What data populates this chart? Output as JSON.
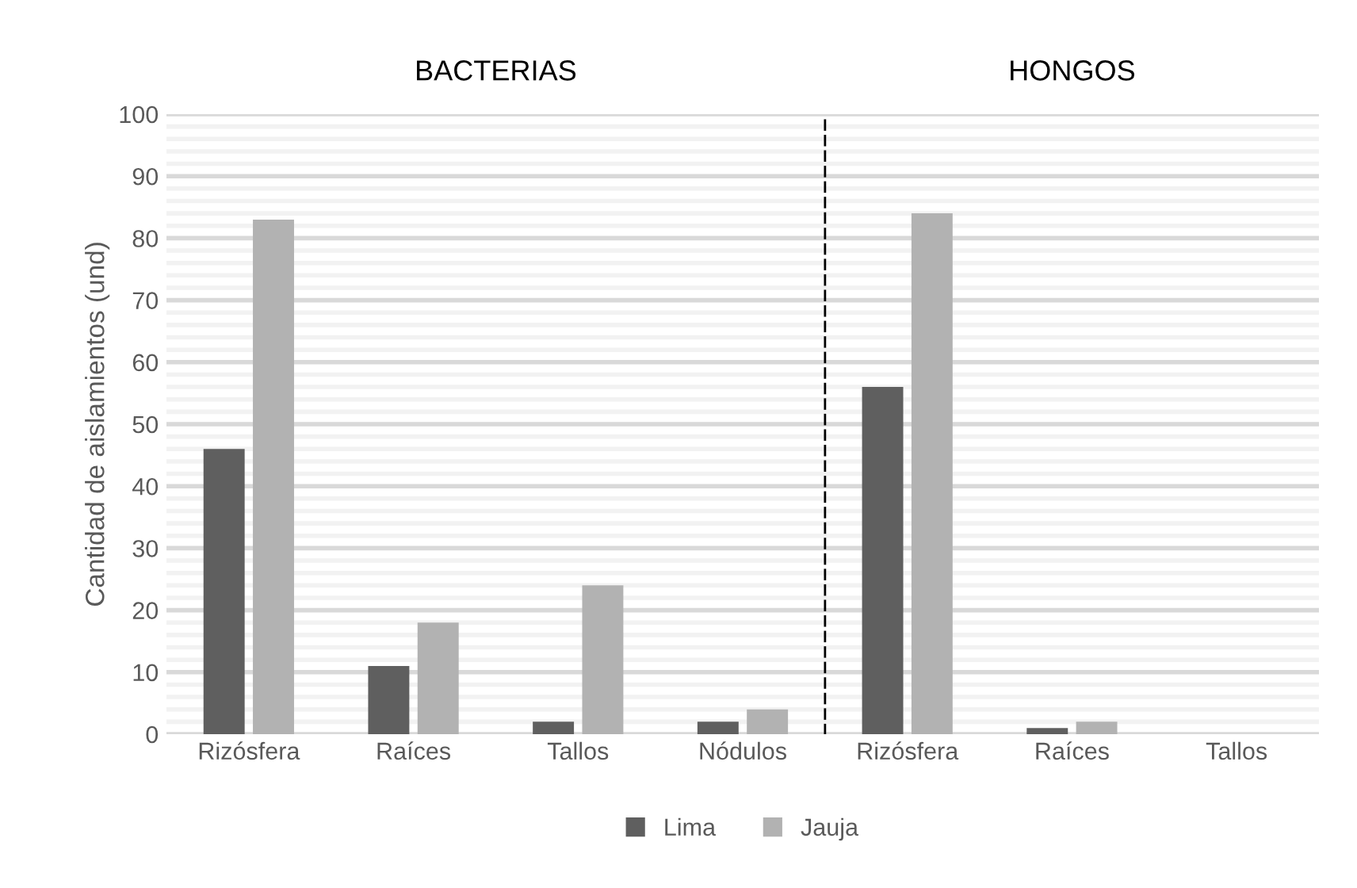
{
  "chart_data": {
    "type": "bar",
    "ylabel": "Cantidad de aislamientos (und)",
    "categories": [
      "Rizósfera",
      "Raíces",
      "Tallos",
      "Nódulos",
      "Rizósfera",
      "Raíces",
      "Tallos"
    ],
    "series": [
      {
        "name": "Lima",
        "color": "#5f5f5f",
        "values": [
          46,
          11,
          2,
          2,
          56,
          1,
          0
        ]
      },
      {
        "name": "Jauja",
        "color": "#b2b2b2",
        "values": [
          83,
          18,
          24,
          4,
          84,
          2,
          0
        ]
      }
    ],
    "ylim": [
      0,
      100
    ],
    "yticks": [
      0,
      {
        "value": 2,
        "label": null
      },
      {
        "value": 4,
        "label": null
      },
      {
        "value": 6,
        "label": null
      },
      {
        "value": 8,
        "label": null
      },
      10,
      {
        "value": 12,
        "label": null
      },
      {
        "value": 14,
        "label": null
      },
      {
        "value": 16,
        "label": null
      },
      {
        "value": 18,
        "label": null
      },
      20,
      {
        "value": 22,
        "label": null
      },
      {
        "value": 24,
        "label": null
      },
      {
        "value": 26,
        "label": null
      },
      {
        "value": 28,
        "label": null
      },
      30,
      {
        "value": 32,
        "label": null
      },
      {
        "value": 34,
        "label": null
      },
      {
        "value": 36,
        "label": null
      },
      {
        "value": 38,
        "label": null
      },
      40,
      {
        "value": 42,
        "label": null
      },
      {
        "value": 44,
        "label": null
      },
      {
        "value": 46,
        "label": null
      },
      {
        "value": 48,
        "label": null
      },
      50,
      {
        "value": 52,
        "label": null
      },
      {
        "value": 54,
        "label": null
      },
      {
        "value": 56,
        "label": null
      },
      {
        "value": 58,
        "label": null
      },
      60,
      {
        "value": 62,
        "label": null
      },
      {
        "value": 64,
        "label": null
      },
      {
        "value": 66,
        "label": null
      },
      {
        "value": 68,
        "label": null
      },
      70,
      {
        "value": 72,
        "label": null
      },
      {
        "value": 74,
        "label": null
      },
      {
        "value": 76,
        "label": null
      },
      {
        "value": 78,
        "label": null
      },
      80,
      {
        "value": 82,
        "label": null
      },
      {
        "value": 84,
        "label": null
      },
      {
        "value": 86,
        "label": null
      },
      {
        "value": 88,
        "label": null
      },
      90,
      {
        "value": 92,
        "label": null
      },
      {
        "value": 94,
        "label": null
      },
      {
        "value": 96,
        "label": null
      },
      {
        "value": 98,
        "label": null
      },
      100
    ],
    "grid": "y",
    "legend": "bottom",
    "annotations": [
      "BACTERIAS",
      "HONGOS"
    ]
  }
}
